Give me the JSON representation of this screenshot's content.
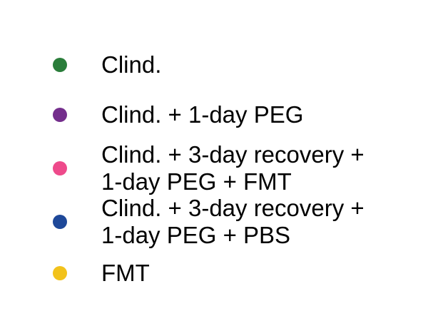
{
  "chart_data": {
    "type": "scatter",
    "title": "",
    "xlabel": "",
    "ylabel": "",
    "legend": {
      "placement": "center",
      "entries": [
        {
          "name": "Clind.",
          "marker": "circle",
          "color": "#2a7d3a"
        },
        {
          "name": "Clind. + 1-day PEG",
          "marker": "circle",
          "color": "#742e8c"
        },
        {
          "name": "Clind. + 3-day recovery +\n1-day PEG + FMT",
          "marker": "circle",
          "color": "#ee4a8b"
        },
        {
          "name": "Clind. + 3-day recovery +\n1-day PEG + PBS",
          "marker": "circle",
          "color": "#1e4899"
        },
        {
          "name": "FMT",
          "marker": "circle",
          "color": "#f2c21b"
        }
      ]
    },
    "series": [
      {
        "name": "Clind.",
        "values": []
      },
      {
        "name": "Clind. + 1-day PEG",
        "values": []
      },
      {
        "name": "Clind. + 3-day recovery +\n1-day PEG + FMT",
        "values": []
      },
      {
        "name": "Clind. + 3-day recovery +\n1-day PEG + PBS",
        "values": []
      },
      {
        "name": "FMT",
        "values": []
      }
    ]
  }
}
